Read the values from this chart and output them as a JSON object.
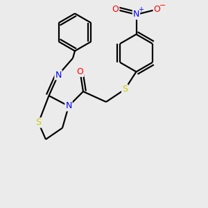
{
  "background_color": "#ebebeb",
  "atom_colors": {
    "C": "#000000",
    "N": "#0000ff",
    "O": "#ff0000",
    "S": "#cccc00"
  },
  "bond_color": "#000000",
  "bond_width": 1.6,
  "font_size_atom": 9
}
